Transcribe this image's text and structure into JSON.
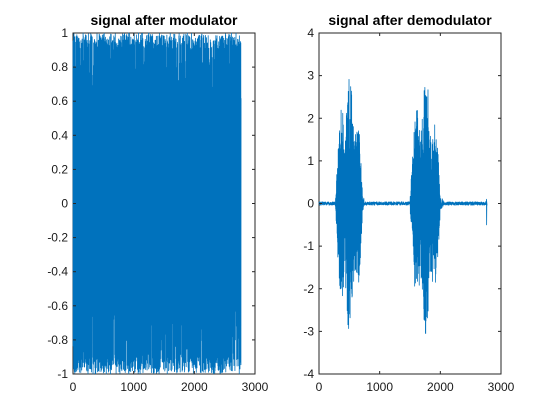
{
  "chart_data": [
    {
      "type": "line",
      "title": "signal after modulator",
      "xlabel": "",
      "ylabel": "",
      "xlim": [
        0,
        3000
      ],
      "ylim": [
        -1,
        1
      ],
      "xticks": [
        0,
        1000,
        2000,
        3000
      ],
      "xtick_labels": [
        "0",
        "1000",
        "2000",
        "3000"
      ],
      "yticks": [
        1,
        0.8,
        0.6,
        0.4,
        0.2,
        0,
        -0.2,
        -0.4,
        -0.6,
        -0.8,
        -1
      ],
      "ytick_labels": [
        "1",
        "0.8",
        "0.6",
        "0.4",
        "0.2",
        "0",
        "-0.2",
        "-0.4",
        "-0.6",
        "-0.8",
        "-1"
      ],
      "grid": false,
      "series": [
        {
          "x_range": [
            0,
            2770
          ],
          "min": -1,
          "max": 1,
          "color": "#0072BD"
        }
      ]
    },
    {
      "type": "line",
      "title": "signal after demodulator",
      "xlabel": "",
      "ylabel": "",
      "xlim": [
        0,
        3000
      ],
      "ylim": [
        -4,
        4
      ],
      "xticks": [
        0,
        1000,
        2000,
        3000
      ],
      "xtick_labels": [
        "0",
        "1000",
        "2000",
        "3000"
      ],
      "yticks": [
        4,
        3,
        2,
        1,
        0,
        -1,
        -2,
        -3,
        -4
      ],
      "ytick_labels": [
        "4",
        "3",
        "2",
        "1",
        "0",
        "-1",
        "-2",
        "-3",
        "-4"
      ],
      "grid": false,
      "series": [
        {
          "color": "#0072BD",
          "x_range": [
            0,
            2770
          ],
          "bursts": [
            {
              "x_range": [
                270,
                720
              ],
              "min": -3.1,
              "max": 3.05
            },
            {
              "x_range": [
                1500,
                2000
              ],
              "min": -3.1,
              "max": 3.0
            }
          ],
          "spike": {
            "x": 2760,
            "min": -0.5,
            "max": 0.1
          }
        }
      ]
    }
  ]
}
